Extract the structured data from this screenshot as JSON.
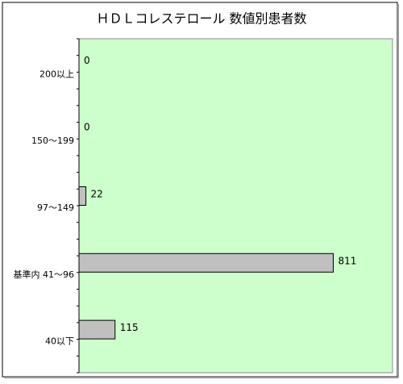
{
  "chart_data": {
    "type": "bar",
    "orientation": "horizontal",
    "title": "ＨＤＬコレステロール 数値別患者数",
    "categories": [
      "200以上",
      "150～199",
      "97～149",
      "基準内 41～96",
      "40以下"
    ],
    "values": [
      0,
      0,
      22,
      811,
      115
    ],
    "color": "#c0c0c0",
    "xlim": [
      0,
      1000
    ],
    "background": "#ccffcc"
  }
}
